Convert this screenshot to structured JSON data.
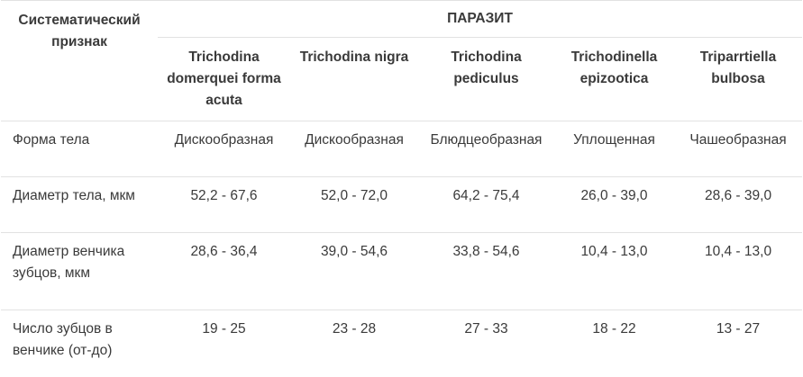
{
  "table": {
    "corner_header": "Систематический признак",
    "group_header": "ПАРАЗИТ",
    "parasites": [
      "Trichodina domerquei forma acuta",
      "Trichodina nigra",
      "Trichodina pediculus",
      "Trichodinella epizootica",
      "Triparrtiella bulbosa"
    ],
    "rows": [
      {
        "label": "Форма тела",
        "values": [
          "Дискообразная",
          "Дискообразная",
          "Блюдцеобразная",
          "Уплощенная",
          "Чашеобразная"
        ]
      },
      {
        "label": "Диаметр тела, мкм",
        "values": [
          "52,2 - 67,6",
          "52,0 - 72,0",
          "64,2 - 75,4",
          "26,0 - 39,0",
          "28,6 - 39,0"
        ]
      },
      {
        "label": "Диаметр венчика зубцов, мкм",
        "values": [
          "28,6 - 36,4",
          "39,0 - 54,6",
          "33,8 - 54,6",
          "10,4 - 13,0",
          "10,4 - 13,0"
        ]
      },
      {
        "label": "Число зубцов в венчике (от-до)",
        "values": [
          "19 - 25",
          "23 - 28",
          "27 - 33",
          "18 - 22",
          "13 - 27"
        ]
      }
    ]
  }
}
